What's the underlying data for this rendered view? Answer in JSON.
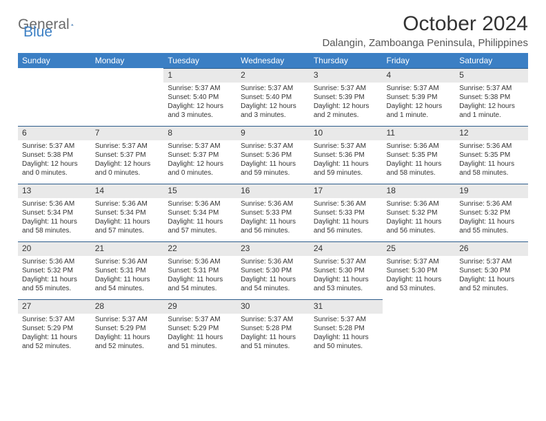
{
  "logo": {
    "general": "General",
    "blue": "Blue"
  },
  "title": "October 2024",
  "location": "Dalangin, Zamboanga Peninsula, Philippines",
  "colors": {
    "header_bg": "#3b7fc4",
    "header_fg": "#ffffff",
    "daynum_bg": "#e9e9e9",
    "daynum_border": "#2b5b8a",
    "text": "#333333",
    "logo_gray": "#6b6b6b",
    "logo_blue": "#3b7fc4",
    "background": "#ffffff"
  },
  "day_headers": [
    "Sunday",
    "Monday",
    "Tuesday",
    "Wednesday",
    "Thursday",
    "Friday",
    "Saturday"
  ],
  "weeks": [
    [
      null,
      null,
      {
        "n": "1",
        "sr": "Sunrise: 5:37 AM",
        "ss": "Sunset: 5:40 PM",
        "dl": "Daylight: 12 hours and 3 minutes."
      },
      {
        "n": "2",
        "sr": "Sunrise: 5:37 AM",
        "ss": "Sunset: 5:40 PM",
        "dl": "Daylight: 12 hours and 3 minutes."
      },
      {
        "n": "3",
        "sr": "Sunrise: 5:37 AM",
        "ss": "Sunset: 5:39 PM",
        "dl": "Daylight: 12 hours and 2 minutes."
      },
      {
        "n": "4",
        "sr": "Sunrise: 5:37 AM",
        "ss": "Sunset: 5:39 PM",
        "dl": "Daylight: 12 hours and 1 minute."
      },
      {
        "n": "5",
        "sr": "Sunrise: 5:37 AM",
        "ss": "Sunset: 5:38 PM",
        "dl": "Daylight: 12 hours and 1 minute."
      }
    ],
    [
      {
        "n": "6",
        "sr": "Sunrise: 5:37 AM",
        "ss": "Sunset: 5:38 PM",
        "dl": "Daylight: 12 hours and 0 minutes."
      },
      {
        "n": "7",
        "sr": "Sunrise: 5:37 AM",
        "ss": "Sunset: 5:37 PM",
        "dl": "Daylight: 12 hours and 0 minutes."
      },
      {
        "n": "8",
        "sr": "Sunrise: 5:37 AM",
        "ss": "Sunset: 5:37 PM",
        "dl": "Daylight: 12 hours and 0 minutes."
      },
      {
        "n": "9",
        "sr": "Sunrise: 5:37 AM",
        "ss": "Sunset: 5:36 PM",
        "dl": "Daylight: 11 hours and 59 minutes."
      },
      {
        "n": "10",
        "sr": "Sunrise: 5:37 AM",
        "ss": "Sunset: 5:36 PM",
        "dl": "Daylight: 11 hours and 59 minutes."
      },
      {
        "n": "11",
        "sr": "Sunrise: 5:36 AM",
        "ss": "Sunset: 5:35 PM",
        "dl": "Daylight: 11 hours and 58 minutes."
      },
      {
        "n": "12",
        "sr": "Sunrise: 5:36 AM",
        "ss": "Sunset: 5:35 PM",
        "dl": "Daylight: 11 hours and 58 minutes."
      }
    ],
    [
      {
        "n": "13",
        "sr": "Sunrise: 5:36 AM",
        "ss": "Sunset: 5:34 PM",
        "dl": "Daylight: 11 hours and 58 minutes."
      },
      {
        "n": "14",
        "sr": "Sunrise: 5:36 AM",
        "ss": "Sunset: 5:34 PM",
        "dl": "Daylight: 11 hours and 57 minutes."
      },
      {
        "n": "15",
        "sr": "Sunrise: 5:36 AM",
        "ss": "Sunset: 5:34 PM",
        "dl": "Daylight: 11 hours and 57 minutes."
      },
      {
        "n": "16",
        "sr": "Sunrise: 5:36 AM",
        "ss": "Sunset: 5:33 PM",
        "dl": "Daylight: 11 hours and 56 minutes."
      },
      {
        "n": "17",
        "sr": "Sunrise: 5:36 AM",
        "ss": "Sunset: 5:33 PM",
        "dl": "Daylight: 11 hours and 56 minutes."
      },
      {
        "n": "18",
        "sr": "Sunrise: 5:36 AM",
        "ss": "Sunset: 5:32 PM",
        "dl": "Daylight: 11 hours and 56 minutes."
      },
      {
        "n": "19",
        "sr": "Sunrise: 5:36 AM",
        "ss": "Sunset: 5:32 PM",
        "dl": "Daylight: 11 hours and 55 minutes."
      }
    ],
    [
      {
        "n": "20",
        "sr": "Sunrise: 5:36 AM",
        "ss": "Sunset: 5:32 PM",
        "dl": "Daylight: 11 hours and 55 minutes."
      },
      {
        "n": "21",
        "sr": "Sunrise: 5:36 AM",
        "ss": "Sunset: 5:31 PM",
        "dl": "Daylight: 11 hours and 54 minutes."
      },
      {
        "n": "22",
        "sr": "Sunrise: 5:36 AM",
        "ss": "Sunset: 5:31 PM",
        "dl": "Daylight: 11 hours and 54 minutes."
      },
      {
        "n": "23",
        "sr": "Sunrise: 5:36 AM",
        "ss": "Sunset: 5:30 PM",
        "dl": "Daylight: 11 hours and 54 minutes."
      },
      {
        "n": "24",
        "sr": "Sunrise: 5:37 AM",
        "ss": "Sunset: 5:30 PM",
        "dl": "Daylight: 11 hours and 53 minutes."
      },
      {
        "n": "25",
        "sr": "Sunrise: 5:37 AM",
        "ss": "Sunset: 5:30 PM",
        "dl": "Daylight: 11 hours and 53 minutes."
      },
      {
        "n": "26",
        "sr": "Sunrise: 5:37 AM",
        "ss": "Sunset: 5:30 PM",
        "dl": "Daylight: 11 hours and 52 minutes."
      }
    ],
    [
      {
        "n": "27",
        "sr": "Sunrise: 5:37 AM",
        "ss": "Sunset: 5:29 PM",
        "dl": "Daylight: 11 hours and 52 minutes."
      },
      {
        "n": "28",
        "sr": "Sunrise: 5:37 AM",
        "ss": "Sunset: 5:29 PM",
        "dl": "Daylight: 11 hours and 52 minutes."
      },
      {
        "n": "29",
        "sr": "Sunrise: 5:37 AM",
        "ss": "Sunset: 5:29 PM",
        "dl": "Daylight: 11 hours and 51 minutes."
      },
      {
        "n": "30",
        "sr": "Sunrise: 5:37 AM",
        "ss": "Sunset: 5:28 PM",
        "dl": "Daylight: 11 hours and 51 minutes."
      },
      {
        "n": "31",
        "sr": "Sunrise: 5:37 AM",
        "ss": "Sunset: 5:28 PM",
        "dl": "Daylight: 11 hours and 50 minutes."
      },
      null,
      null
    ]
  ]
}
